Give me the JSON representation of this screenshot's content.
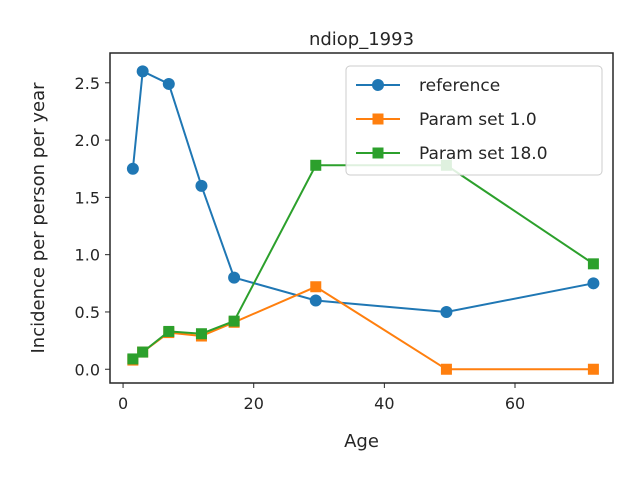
{
  "chart_data": {
    "type": "line",
    "title": "ndiop_1993",
    "xlabel": "Age",
    "ylabel": "Incidence per person per year",
    "xlim": [
      -2,
      75
    ],
    "ylim": [
      -0.12,
      2.76
    ],
    "xticks": [
      0,
      20,
      40,
      60
    ],
    "yticks": [
      0.0,
      0.5,
      1.0,
      1.5,
      2.0,
      2.5
    ],
    "ytick_labels": [
      "0.0",
      "0.5",
      "1.0",
      "1.5",
      "2.0",
      "2.5"
    ],
    "grid": false,
    "legend_position": "top-right",
    "series": [
      {
        "name": "reference",
        "color": "#1f77b4",
        "marker": "circle",
        "x": [
          1.5,
          3,
          7,
          12,
          17,
          29.5,
          49.5,
          72
        ],
        "y": [
          1.75,
          2.6,
          2.49,
          1.6,
          0.8,
          0.6,
          0.5,
          0.75
        ]
      },
      {
        "name": "Param set 1.0",
        "color": "#ff7f0e",
        "marker": "square",
        "x": [
          1.5,
          3,
          7,
          12,
          17,
          29.5,
          49.5,
          72
        ],
        "y": [
          0.08,
          0.15,
          0.32,
          0.29,
          0.41,
          0.72,
          0.0,
          0.0
        ]
      },
      {
        "name": "Param set 18.0",
        "color": "#2ca02c",
        "marker": "square",
        "x": [
          1.5,
          3,
          7,
          12,
          17,
          29.5,
          49.5,
          72
        ],
        "y": [
          0.09,
          0.15,
          0.33,
          0.31,
          0.42,
          1.78,
          1.78,
          0.92
        ]
      }
    ]
  }
}
